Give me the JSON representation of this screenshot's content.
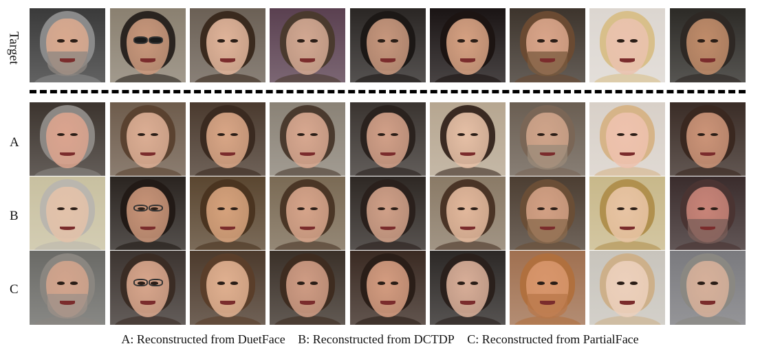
{
  "labels": {
    "target": "Target",
    "row_a": "A",
    "row_b": "B",
    "row_c": "C"
  },
  "caption": {
    "a": "A: Reconstructed from DuetFace",
    "b": "B: Reconstructed from DCTDP",
    "c": "C: Reconstructed from PartialFace"
  },
  "colors": {
    "divider": "#000000",
    "background": "#ffffff"
  }
}
